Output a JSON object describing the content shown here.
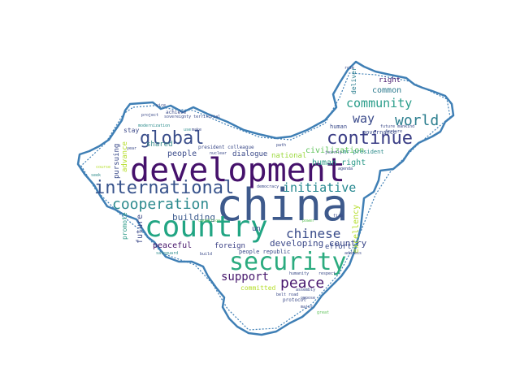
{
  "colors": {
    "outline": "#3f7fb5",
    "background": "#ffffff"
  },
  "words": {
    "china": "china",
    "development": "development",
    "country": "country",
    "security": "security",
    "international": "international",
    "continue": "continue",
    "global": "global",
    "cooperation": "cooperation",
    "peace": "peace",
    "world": "world",
    "community": "community",
    "initiative": "initiative",
    "chinese": "chinese",
    "way": "way",
    "support": "support",
    "developing_country": "developing country",
    "building": "building",
    "people": "people",
    "civilization": "civilization",
    "human_right": "human right",
    "common": "common",
    "future": "future",
    "peaceful": "peaceful",
    "foreign": "foreign",
    "dialogue": "dialogue",
    "national": "national",
    "effort": "effort",
    "right": "right",
    "excellency": "excellency",
    "deliver": "deliver",
    "shared": "shared",
    "advance": "advance",
    "pursuing": "pursuing",
    "stay": "stay",
    "promote": "promote",
    "committed": "committed",
    "people_republic": "people republic",
    "mr_president": "mr president",
    "governance": "governance",
    "human": "human",
    "president_colleague": "president colleague",
    "un": "un",
    "achieve": "achieve",
    "project": "project",
    "modernization": "modernization",
    "vice": "vice",
    "use": "use",
    "safeguard": "safeguard",
    "address": "address",
    "respect": "respect",
    "protocol": "protocol",
    "oppose": "oppose",
    "major": "major",
    "assembly": "assembly",
    "humanity": "humanity",
    "democracy": "democracy",
    "agenda": "agenda",
    "firm": "firm",
    "power": "power",
    "condition": "condition",
    "year": "year",
    "nuclear": "nuclear",
    "feature": "feature",
    "future_mankind": "future mankind",
    "path": "path",
    "belt_road": "belt road",
    "great": "great",
    "role": "role",
    "jointly": "jointly",
    "course": "course",
    "seek": "seek",
    "build": "build",
    "sovereignty_territorial": "sovereignty territorial",
    "make": "make"
  }
}
